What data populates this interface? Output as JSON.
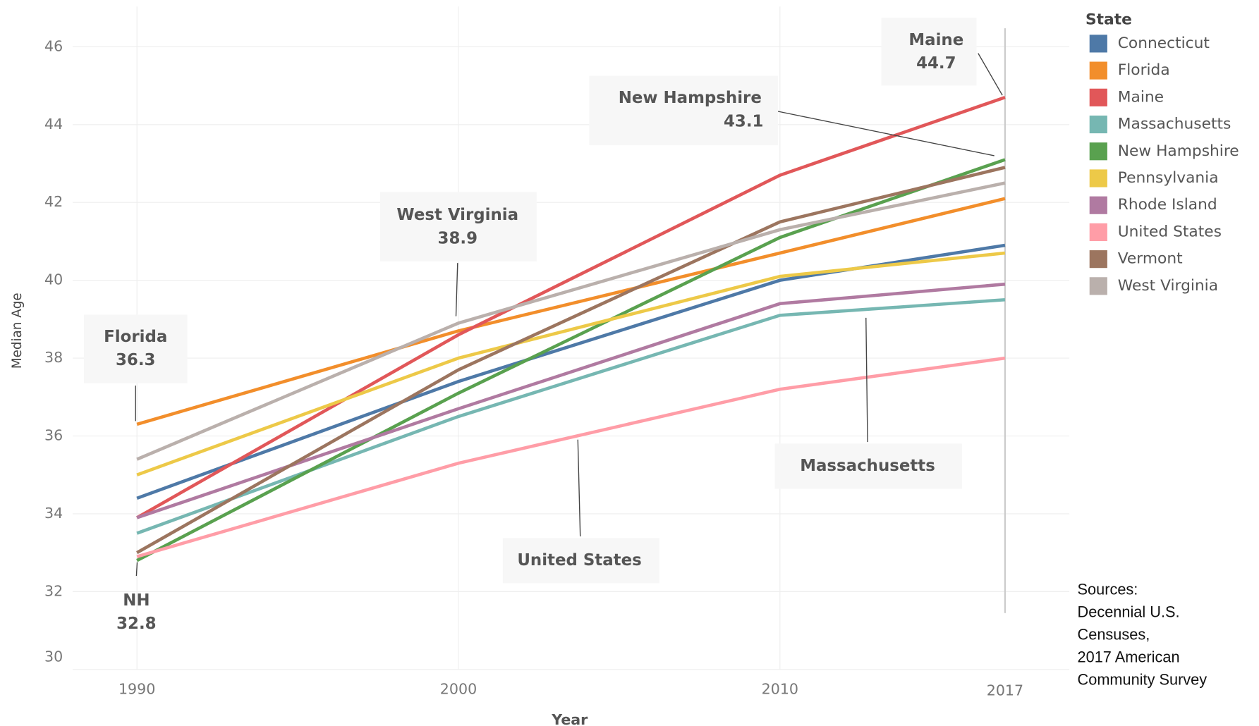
{
  "chart_data": {
    "type": "line",
    "x_label": "Year",
    "y_label": "Median Age",
    "legend_title": "State",
    "x": [
      1990,
      2000,
      2010,
      2017
    ],
    "xlim": [
      1988,
      2019
    ],
    "xticks": [
      1990,
      2000,
      2010,
      2017
    ],
    "ylim": [
      30,
      47.2
    ],
    "yticks": [
      30,
      32,
      34,
      36,
      38,
      40,
      42,
      44,
      46
    ],
    "grid": true,
    "legend": "right",
    "series": [
      {
        "name": "Connecticut",
        "color": "#4e79a7",
        "values": [
          34.4,
          37.4,
          40.0,
          40.9
        ]
      },
      {
        "name": "Florida",
        "color": "#f28e2b",
        "values": [
          36.3,
          38.7,
          40.7,
          42.1
        ]
      },
      {
        "name": "Maine",
        "color": "#e15759",
        "values": [
          33.9,
          38.6,
          42.7,
          44.7
        ]
      },
      {
        "name": "Massachusetts",
        "color": "#76b7b2",
        "values": [
          33.5,
          36.5,
          39.1,
          39.5
        ]
      },
      {
        "name": "New Hampshire",
        "color": "#59a14f",
        "values": [
          32.8,
          37.1,
          41.1,
          43.1
        ]
      },
      {
        "name": "Pennsylvania",
        "color": "#edc948",
        "values": [
          35.0,
          38.0,
          40.1,
          40.7
        ]
      },
      {
        "name": "Rhode Island",
        "color": "#b07aa1",
        "values": [
          33.9,
          36.7,
          39.4,
          39.9
        ]
      },
      {
        "name": "United States",
        "color": "#ff9da7",
        "values": [
          32.9,
          35.3,
          37.2,
          38.0
        ]
      },
      {
        "name": "Vermont",
        "color": "#9c755f",
        "values": [
          33.0,
          37.7,
          41.5,
          42.9
        ]
      },
      {
        "name": "West Virginia",
        "color": "#bab0ac",
        "values": [
          35.4,
          38.9,
          41.3,
          42.5
        ]
      }
    ],
    "annotations": [
      {
        "text": "Maine",
        "value": 44.7
      },
      {
        "text": "New Hampshire",
        "value": 43.1
      },
      {
        "text": "West Virginia",
        "value": 38.9
      },
      {
        "text": "Florida",
        "value": 36.3
      },
      {
        "text": "NH",
        "value": 32.8
      },
      {
        "text": "United States"
      },
      {
        "text": "Massachusetts"
      }
    ],
    "sources": [
      "Sources:",
      "Decennial U.S.",
      "Censuses,",
      "2017 American",
      "Community  Survey"
    ]
  }
}
